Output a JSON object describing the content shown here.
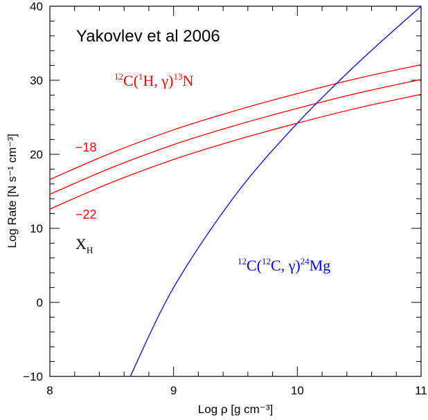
{
  "chart_data": {
    "type": "line",
    "title": "Yakovlev et al 2006",
    "xlabel": "Log ρ [g cm⁻³]",
    "ylabel": "Log Rate [N s⁻¹ cm⁻³]",
    "xlim": [
      8,
      11
    ],
    "ylim": [
      -10,
      40
    ],
    "x_ticks": [
      8,
      9,
      10,
      11
    ],
    "y_ticks": [
      -10,
      0,
      10,
      20,
      30,
      40
    ],
    "grid": false,
    "series": [
      {
        "name": "¹²C(¹H, γ)¹³N",
        "color": "#ff0000",
        "x": [
          8.0,
          8.5,
          9.0,
          9.5,
          10.0,
          10.5,
          11.0
        ],
        "y": [
          16.6,
          20.2,
          23.3,
          25.9,
          28.2,
          30.3,
          32.1
        ]
      },
      {
        "name": "¹²C(¹H, γ)¹³N",
        "color": "#ff0000",
        "x": [
          8.0,
          8.5,
          9.0,
          9.5,
          10.0,
          10.5,
          11.0
        ],
        "y": [
          14.6,
          18.2,
          21.3,
          23.9,
          26.2,
          28.3,
          30.1
        ]
      },
      {
        "name": "¹²C(¹H, γ)¹³N",
        "color": "#ff0000",
        "x": [
          8.0,
          8.5,
          9.0,
          9.5,
          10.0,
          10.5,
          11.0
        ],
        "y": [
          12.6,
          16.2,
          19.3,
          21.9,
          24.2,
          26.3,
          28.1
        ]
      },
      {
        "name": "¹²C(¹²C, γ)²⁴Mg",
        "color": "#0000ff",
        "x": [
          8.65,
          9.0,
          9.5,
          10.0,
          10.5,
          11.0
        ],
        "y": [
          -10.0,
          2.0,
          14.5,
          24.2,
          32.5,
          40.0
        ]
      }
    ],
    "annotations": {
      "title": "Yakovlev et al 2006",
      "red_reaction": {
        "base": "C",
        "pre_sup": "12",
        "open": "(",
        "inner_sup": "1",
        "inner": "H, γ)",
        "post_sup": "13",
        "post": "N"
      },
      "blue_reaction": {
        "base": "C",
        "pre_sup": "12",
        "open": "(",
        "inner_sup": "12",
        "inner": "C, γ)",
        "post_sup": "24",
        "post": "Mg"
      },
      "top_curve_label": "−18",
      "bottom_curve_label": "−22",
      "xh_main": "X",
      "xh_sub": "H"
    },
    "colors": {
      "red": "#ff0000",
      "blue": "#0000ff",
      "axes": "#000000"
    }
  }
}
